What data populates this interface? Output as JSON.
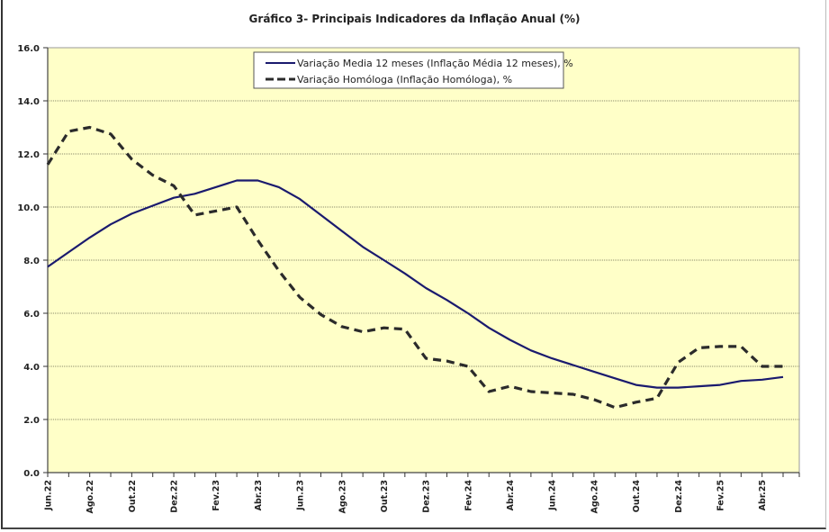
{
  "chart_data": {
    "type": "line",
    "title": "Gráfico 3- Principais Indicadores da Inflação Anual (%)",
    "xlabel": "",
    "ylabel": "",
    "ylim": [
      0,
      16
    ],
    "yticks": [
      "0.0",
      "2.0",
      "4.0",
      "6.0",
      "8.0",
      "10.0",
      "12.0",
      "14.0",
      "16.0"
    ],
    "grid": true,
    "legend_position": "top-center",
    "x": [
      "Jun.22",
      "Jul.22",
      "Ago.22",
      "Set.22",
      "Out.22",
      "Nov.22",
      "Dez.22",
      "Jan.23",
      "Fev.23",
      "Mar.23",
      "Abr.23",
      "Mai.23",
      "Jun.23",
      "Jul.23",
      "Ago.23",
      "Set.23",
      "Out.23",
      "Nov.23",
      "Dez.23",
      "Jan.24",
      "Fev.24",
      "Mar.24",
      "Abr.24",
      "Mai.24",
      "Jun.24",
      "Jul.24",
      "Ago.24",
      "Set.24",
      "Out.24",
      "Nov.24",
      "Dez.24",
      "Jan.25",
      "Fev.25",
      "Mar.25",
      "Abr.25",
      "Mai.25"
    ],
    "xtick_labels": [
      "Jun.22",
      "Ago.22",
      "Out.22",
      "Dez.22",
      "Fev.23",
      "Abr.23",
      "Jun.23",
      "Ago.23",
      "Out.23",
      "Dez.23",
      "Fev.24",
      "Abr.24",
      "Jun.24",
      "Ago.24",
      "Out.24",
      "Dez.24",
      "Fev.25",
      "Abr.25"
    ],
    "series": [
      {
        "name": "Variação Media 12 meses (Inflação Média 12 meses), %",
        "color": "#1a1a6e",
        "style": "solid",
        "values": [
          7.75,
          8.3,
          8.85,
          9.35,
          9.75,
          10.05,
          10.35,
          10.5,
          10.75,
          11.0,
          11.0,
          10.75,
          10.3,
          9.7,
          9.1,
          8.5,
          8.0,
          7.5,
          6.95,
          6.5,
          6.0,
          5.45,
          5.0,
          4.6,
          4.3,
          4.05,
          3.8,
          3.55,
          3.3,
          3.2,
          3.2,
          3.25,
          3.3,
          3.45,
          3.5,
          3.6
        ]
      },
      {
        "name": "Variação Homóloga (Inflação Homóloga), %",
        "color": "#2b2b2b",
        "style": "dashed",
        "values": [
          11.6,
          12.85,
          13.0,
          12.75,
          11.8,
          11.2,
          10.8,
          9.7,
          9.85,
          10.0,
          8.75,
          7.6,
          6.6,
          5.95,
          5.5,
          5.3,
          5.45,
          5.4,
          4.3,
          4.2,
          4.0,
          3.05,
          3.25,
          3.05,
          3.0,
          2.95,
          2.75,
          2.45,
          2.65,
          2.8,
          4.15,
          4.7,
          4.75,
          4.75,
          4.0,
          4.0
        ]
      }
    ],
    "colors": {
      "plot_background": "#ffffc8",
      "grid": "#8a8a6a"
    }
  }
}
